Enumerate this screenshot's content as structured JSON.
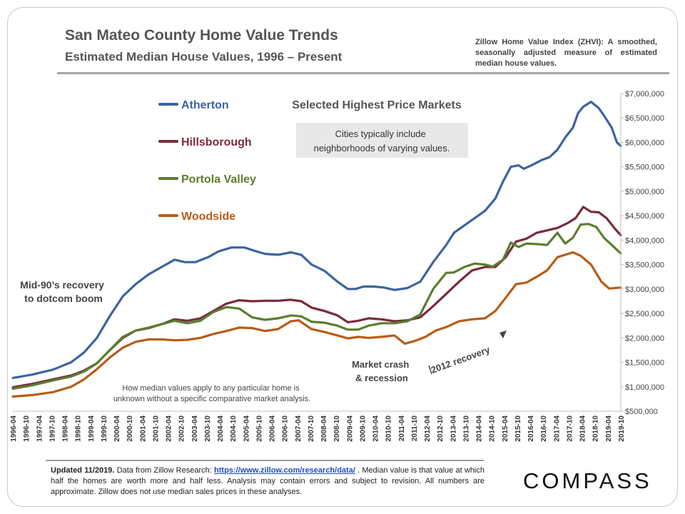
{
  "header": {
    "title": "San Mateo County Home Value Trends",
    "subtitle": "Estimated Median House Values, 1996 – Present",
    "zhvi_note": "Zillow Home Value Index (ZHVI): A smoothed, seasonally adjusted measure of estimated median house values."
  },
  "footer": {
    "updated": "Updated 11/2019.",
    "text_before_link": " Data from Zillow Research: ",
    "link": "https://www.zillow.com/research/data/",
    "text_after_link": " . Median value is that value at which half the homes are worth more and half less. Analysis may contain errors and subject to revision. All numbers are approximate. Zillow does not use median sales prices in these analyses."
  },
  "brand": "COMPASS",
  "chart_data": {
    "type": "line",
    "title": "Selected Highest Price Markets",
    "callout_box": "Cities typically include neighborhoods of varying values.",
    "annotations": {
      "left": "Mid-90’s recovery to dotcom boom",
      "crash": "Market crash & recession",
      "recovery": "2012 recovery",
      "disclaimer": "How median values apply to any particular home is unknown without a specific comparative market analysis."
    },
    "x_tick_labels": [
      "1996-04",
      "1996-10",
      "1997-04",
      "1997-10",
      "1998-04",
      "1998-10",
      "1999-04",
      "1999-10",
      "2000-04",
      "2000-10",
      "2001-04",
      "2001-10",
      "2002-04",
      "2002-10",
      "2003-04",
      "2003-10",
      "2004-04",
      "2004-10",
      "2005-04",
      "2005-10",
      "2006-04",
      "2006-10",
      "2007-04",
      "2007-10",
      "2008-04",
      "2008-10",
      "2009-04",
      "2009-10",
      "2010-04",
      "2010-10",
      "2011-04",
      "2011-10",
      "2012-04",
      "2012-10",
      "2013-04",
      "2013-10",
      "2014-04",
      "2014-10",
      "2015-04",
      "2015-10",
      "2016-04",
      "2016-10",
      "2017-04",
      "2017-10",
      "2018-04",
      "2018-10",
      "2019-04",
      "2019-10"
    ],
    "x_range": [
      1996.25,
      2019.75
    ],
    "y_axis_side": "right",
    "ylim": [
      500000,
      7000000
    ],
    "y_ticks": [
      500000,
      1000000,
      1500000,
      2000000,
      2500000,
      3000000,
      3500000,
      4000000,
      4500000,
      5000000,
      5500000,
      6000000,
      6500000,
      7000000
    ],
    "y_tick_labels": [
      "$500,000",
      "$1,000,000",
      "$1,500,000",
      "$2,000,000",
      "$2,500,000",
      "$3,000,000",
      "$3,500,000",
      "$4,000,000",
      "$4,500,000",
      "$5,000,000",
      "$5,500,000",
      "$6,000,000",
      "$6,500,000",
      "$7,000,000"
    ],
    "grid": false,
    "legend_position": "top-left",
    "series": [
      {
        "name": "Atherton",
        "color": "#3b64a0",
        "points": [
          [
            1996.25,
            1180000
          ],
          [
            1997.0,
            1250000
          ],
          [
            1997.8,
            1350000
          ],
          [
            1998.5,
            1500000
          ],
          [
            1999.0,
            1700000
          ],
          [
            1999.5,
            2000000
          ],
          [
            2000.0,
            2450000
          ],
          [
            2000.5,
            2850000
          ],
          [
            2001.0,
            3100000
          ],
          [
            2001.5,
            3300000
          ],
          [
            2002.0,
            3450000
          ],
          [
            2002.5,
            3600000
          ],
          [
            2002.9,
            3550000
          ],
          [
            2003.3,
            3550000
          ],
          [
            2003.8,
            3650000
          ],
          [
            2004.2,
            3770000
          ],
          [
            2004.7,
            3850000
          ],
          [
            2005.2,
            3850000
          ],
          [
            2005.6,
            3780000
          ],
          [
            2006.0,
            3720000
          ],
          [
            2006.5,
            3700000
          ],
          [
            2007.0,
            3750000
          ],
          [
            2007.4,
            3700000
          ],
          [
            2007.8,
            3500000
          ],
          [
            2008.3,
            3370000
          ],
          [
            2008.8,
            3150000
          ],
          [
            2009.2,
            3000000
          ],
          [
            2009.5,
            3000000
          ],
          [
            2009.8,
            3050000
          ],
          [
            2010.2,
            3050000
          ],
          [
            2010.6,
            3030000
          ],
          [
            2011.0,
            2980000
          ],
          [
            2011.5,
            3020000
          ],
          [
            2012.0,
            3150000
          ],
          [
            2012.5,
            3550000
          ],
          [
            2013.0,
            3900000
          ],
          [
            2013.3,
            4150000
          ],
          [
            2013.7,
            4300000
          ],
          [
            2014.1,
            4450000
          ],
          [
            2014.5,
            4600000
          ],
          [
            2014.9,
            4850000
          ],
          [
            2015.2,
            5200000
          ],
          [
            2015.5,
            5500000
          ],
          [
            2015.8,
            5530000
          ],
          [
            2016.0,
            5460000
          ],
          [
            2016.3,
            5530000
          ],
          [
            2016.7,
            5640000
          ],
          [
            2017.0,
            5700000
          ],
          [
            2017.3,
            5850000
          ],
          [
            2017.6,
            6100000
          ],
          [
            2017.9,
            6300000
          ],
          [
            2018.1,
            6600000
          ],
          [
            2018.3,
            6730000
          ],
          [
            2018.6,
            6830000
          ],
          [
            2018.9,
            6700000
          ],
          [
            2019.1,
            6550000
          ],
          [
            2019.4,
            6300000
          ],
          [
            2019.6,
            6000000
          ],
          [
            2019.75,
            5930000
          ]
        ]
      },
      {
        "name": "Hillsborough",
        "color": "#7a2a3a",
        "points": [
          [
            1996.25,
            990000
          ],
          [
            1997.0,
            1060000
          ],
          [
            1997.8,
            1150000
          ],
          [
            1998.5,
            1230000
          ],
          [
            1999.0,
            1330000
          ],
          [
            1999.5,
            1480000
          ],
          [
            2000.0,
            1750000
          ],
          [
            2000.5,
            2000000
          ],
          [
            2001.0,
            2150000
          ],
          [
            2001.5,
            2200000
          ],
          [
            2002.0,
            2280000
          ],
          [
            2002.5,
            2380000
          ],
          [
            2003.0,
            2350000
          ],
          [
            2003.5,
            2400000
          ],
          [
            2004.0,
            2550000
          ],
          [
            2004.5,
            2700000
          ],
          [
            2005.0,
            2770000
          ],
          [
            2005.5,
            2750000
          ],
          [
            2006.0,
            2760000
          ],
          [
            2006.5,
            2760000
          ],
          [
            2007.0,
            2780000
          ],
          [
            2007.4,
            2750000
          ],
          [
            2007.8,
            2620000
          ],
          [
            2008.3,
            2550000
          ],
          [
            2008.8,
            2460000
          ],
          [
            2009.2,
            2320000
          ],
          [
            2009.6,
            2350000
          ],
          [
            2010.0,
            2400000
          ],
          [
            2010.5,
            2380000
          ],
          [
            2011.0,
            2340000
          ],
          [
            2011.5,
            2360000
          ],
          [
            2012.0,
            2420000
          ],
          [
            2012.5,
            2650000
          ],
          [
            2013.0,
            2900000
          ],
          [
            2013.5,
            3150000
          ],
          [
            2014.0,
            3380000
          ],
          [
            2014.5,
            3450000
          ],
          [
            2014.9,
            3450000
          ],
          [
            2015.3,
            3650000
          ],
          [
            2015.7,
            3970000
          ],
          [
            2016.1,
            4030000
          ],
          [
            2016.5,
            4150000
          ],
          [
            2016.9,
            4200000
          ],
          [
            2017.3,
            4250000
          ],
          [
            2017.7,
            4350000
          ],
          [
            2018.0,
            4450000
          ],
          [
            2018.3,
            4680000
          ],
          [
            2018.6,
            4580000
          ],
          [
            2018.9,
            4570000
          ],
          [
            2019.2,
            4450000
          ],
          [
            2019.5,
            4250000
          ],
          [
            2019.75,
            4100000
          ]
        ]
      },
      {
        "name": "Portola Valley",
        "color": "#5a7e2e",
        "points": [
          [
            1996.25,
            960000
          ],
          [
            1997.0,
            1030000
          ],
          [
            1997.8,
            1130000
          ],
          [
            1998.5,
            1210000
          ],
          [
            1999.0,
            1310000
          ],
          [
            1999.5,
            1480000
          ],
          [
            2000.0,
            1750000
          ],
          [
            2000.5,
            2020000
          ],
          [
            2001.0,
            2150000
          ],
          [
            2001.5,
            2210000
          ],
          [
            2002.0,
            2280000
          ],
          [
            2002.5,
            2350000
          ],
          [
            2003.0,
            2300000
          ],
          [
            2003.5,
            2350000
          ],
          [
            2004.0,
            2530000
          ],
          [
            2004.5,
            2630000
          ],
          [
            2005.0,
            2600000
          ],
          [
            2005.5,
            2420000
          ],
          [
            2006.0,
            2370000
          ],
          [
            2006.5,
            2400000
          ],
          [
            2007.0,
            2460000
          ],
          [
            2007.4,
            2440000
          ],
          [
            2007.8,
            2330000
          ],
          [
            2008.3,
            2310000
          ],
          [
            2008.8,
            2250000
          ],
          [
            2009.2,
            2170000
          ],
          [
            2009.6,
            2170000
          ],
          [
            2010.0,
            2250000
          ],
          [
            2010.5,
            2300000
          ],
          [
            2011.0,
            2300000
          ],
          [
            2011.5,
            2340000
          ],
          [
            2012.0,
            2480000
          ],
          [
            2012.5,
            3000000
          ],
          [
            2013.0,
            3330000
          ],
          [
            2013.3,
            3340000
          ],
          [
            2013.7,
            3450000
          ],
          [
            2014.1,
            3520000
          ],
          [
            2014.5,
            3500000
          ],
          [
            2014.8,
            3460000
          ],
          [
            2015.2,
            3600000
          ],
          [
            2015.5,
            3950000
          ],
          [
            2015.8,
            3860000
          ],
          [
            2016.1,
            3930000
          ],
          [
            2016.5,
            3920000
          ],
          [
            2016.9,
            3900000
          ],
          [
            2017.3,
            4150000
          ],
          [
            2017.6,
            3930000
          ],
          [
            2017.9,
            4050000
          ],
          [
            2018.2,
            4320000
          ],
          [
            2018.5,
            4330000
          ],
          [
            2018.8,
            4270000
          ],
          [
            2019.1,
            4050000
          ],
          [
            2019.4,
            3900000
          ],
          [
            2019.75,
            3730000
          ]
        ]
      },
      {
        "name": "Woodside",
        "color": "#b85c16",
        "points": [
          [
            1996.25,
            800000
          ],
          [
            1997.0,
            830000
          ],
          [
            1997.8,
            890000
          ],
          [
            1998.5,
            1000000
          ],
          [
            1999.0,
            1150000
          ],
          [
            1999.5,
            1360000
          ],
          [
            2000.0,
            1600000
          ],
          [
            2000.5,
            1800000
          ],
          [
            2001.0,
            1920000
          ],
          [
            2001.5,
            1970000
          ],
          [
            2002.0,
            1970000
          ],
          [
            2002.5,
            1950000
          ],
          [
            2003.0,
            1960000
          ],
          [
            2003.5,
            2000000
          ],
          [
            2004.0,
            2080000
          ],
          [
            2004.5,
            2140000
          ],
          [
            2005.0,
            2210000
          ],
          [
            2005.5,
            2200000
          ],
          [
            2006.0,
            2140000
          ],
          [
            2006.5,
            2180000
          ],
          [
            2007.0,
            2340000
          ],
          [
            2007.3,
            2360000
          ],
          [
            2007.8,
            2180000
          ],
          [
            2008.3,
            2120000
          ],
          [
            2008.8,
            2050000
          ],
          [
            2009.2,
            1990000
          ],
          [
            2009.6,
            2020000
          ],
          [
            2010.0,
            2000000
          ],
          [
            2010.5,
            2020000
          ],
          [
            2011.0,
            2050000
          ],
          [
            2011.4,
            1880000
          ],
          [
            2011.8,
            1940000
          ],
          [
            2012.2,
            2020000
          ],
          [
            2012.6,
            2150000
          ],
          [
            2013.0,
            2220000
          ],
          [
            2013.5,
            2340000
          ],
          [
            2014.0,
            2380000
          ],
          [
            2014.5,
            2400000
          ],
          [
            2014.9,
            2550000
          ],
          [
            2015.3,
            2820000
          ],
          [
            2015.7,
            3100000
          ],
          [
            2016.1,
            3130000
          ],
          [
            2016.5,
            3250000
          ],
          [
            2016.9,
            3380000
          ],
          [
            2017.3,
            3650000
          ],
          [
            2017.6,
            3700000
          ],
          [
            2017.9,
            3750000
          ],
          [
            2018.2,
            3680000
          ],
          [
            2018.6,
            3500000
          ],
          [
            2019.0,
            3150000
          ],
          [
            2019.3,
            3010000
          ],
          [
            2019.75,
            3030000
          ]
        ]
      }
    ]
  }
}
